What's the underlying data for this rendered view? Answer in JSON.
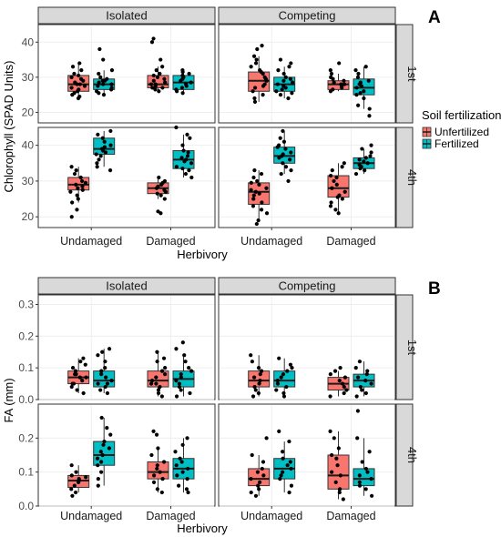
{
  "legend": {
    "title": "Soil fertilization",
    "items": [
      {
        "label": "Unfertilized",
        "color": "#f8766d"
      },
      {
        "label": "Fertilized",
        "color": "#00bfc4"
      }
    ]
  },
  "chart_data": [
    {
      "type": "boxplot",
      "panel_letter": "A",
      "ylabel": "Chlorophyll (SPAD Units)",
      "xlabel": "Herbivory",
      "categories": [
        "Undamaged",
        "Damaged"
      ],
      "column_facets": [
        "Isolated",
        "Competing"
      ],
      "row_facets": [
        {
          "label": "1st",
          "ylim": [
            17,
            45
          ],
          "yticks": [
            20,
            30,
            40
          ]
        },
        {
          "label": "4th",
          "ylim": [
            17,
            45
          ],
          "yticks": [
            20,
            30,
            40
          ]
        }
      ],
      "series": [
        "Unfertilized",
        "Fertilized"
      ],
      "groups": [
        {
          "col": "Isolated",
          "row": "1st",
          "category": "Undamaged",
          "series": "Unfertilized",
          "min": 24,
          "q1": 26,
          "median": 28,
          "q3": 30.5,
          "max": 34,
          "points": [
            24,
            24.5,
            25,
            25.5,
            26,
            26.5,
            27,
            27.5,
            28,
            28,
            28.5,
            29,
            29.5,
            30,
            30.5,
            31,
            32,
            33,
            34
          ]
        },
        {
          "col": "Isolated",
          "row": "1st",
          "category": "Undamaged",
          "series": "Fertilized",
          "min": 25,
          "q1": 26.5,
          "median": 28,
          "q3": 29.5,
          "max": 32,
          "points": [
            25,
            25.5,
            26,
            26.5,
            27,
            27.5,
            28,
            28,
            28.5,
            29,
            29,
            29.5,
            30,
            31,
            32,
            35,
            38
          ]
        },
        {
          "col": "Isolated",
          "row": "1st",
          "category": "Damaged",
          "series": "Unfertilized",
          "min": 26,
          "q1": 27,
          "median": 28,
          "q3": 30.5,
          "max": 33,
          "points": [
            26,
            26.5,
            27,
            27,
            27.5,
            28,
            28,
            28.5,
            29,
            29.5,
            30,
            30.5,
            31,
            32,
            33,
            35,
            40,
            41
          ]
        },
        {
          "col": "Isolated",
          "row": "1st",
          "category": "Damaged",
          "series": "Fertilized",
          "min": 25.5,
          "q1": 26.5,
          "median": 28.5,
          "q3": 30.5,
          "max": 32,
          "points": [
            25.5,
            26,
            26.5,
            27,
            27.5,
            28,
            28.5,
            29,
            29.5,
            30,
            30.5,
            31,
            31.5,
            32
          ]
        },
        {
          "col": "Competing",
          "row": "1st",
          "category": "Undamaged",
          "series": "Unfertilized",
          "min": 23,
          "q1": 26,
          "median": 29,
          "q3": 31.5,
          "max": 36,
          "points": [
            23,
            24,
            25,
            26,
            27,
            27.5,
            28,
            29,
            29.5,
            30,
            31,
            31.5,
            32,
            33,
            34,
            35,
            36,
            38,
            39
          ]
        },
        {
          "col": "Competing",
          "row": "1st",
          "category": "Undamaged",
          "series": "Fertilized",
          "min": 24,
          "q1": 26,
          "median": 28,
          "q3": 30,
          "max": 33,
          "points": [
            24,
            25,
            25.5,
            26,
            26.5,
            27,
            27.5,
            28,
            28.5,
            29,
            29.5,
            30,
            31,
            32,
            33,
            34,
            35
          ]
        },
        {
          "col": "Competing",
          "row": "1st",
          "category": "Damaged",
          "series": "Unfertilized",
          "min": 26,
          "q1": 26.5,
          "median": 28,
          "q3": 29,
          "max": 31,
          "points": [
            26,
            26.5,
            27,
            27.5,
            28,
            28,
            28.5,
            29,
            29.5,
            30,
            31,
            32,
            34
          ]
        },
        {
          "col": "Competing",
          "row": "1st",
          "category": "Damaged",
          "series": "Fertilized",
          "min": 21,
          "q1": 25,
          "median": 27,
          "q3": 29.5,
          "max": 33,
          "points": [
            19,
            21,
            22,
            24,
            25,
            25.5,
            26,
            27,
            27.5,
            28,
            28.5,
            29,
            30,
            31,
            32,
            33
          ]
        },
        {
          "col": "Isolated",
          "row": "4th",
          "category": "Undamaged",
          "series": "Unfertilized",
          "min": 24,
          "q1": 27.5,
          "median": 29,
          "q3": 31,
          "max": 34,
          "points": [
            20,
            22,
            24,
            25,
            26,
            27,
            27.5,
            28,
            28.5,
            29,
            29.5,
            30,
            31,
            32,
            33,
            34
          ]
        },
        {
          "col": "Isolated",
          "row": "4th",
          "category": "Undamaged",
          "series": "Fertilized",
          "min": 34,
          "q1": 37.5,
          "median": 39,
          "q3": 42,
          "max": 44,
          "points": [
            33,
            34,
            35,
            36,
            37,
            37.5,
            38,
            38.5,
            39,
            39.5,
            40,
            41,
            42,
            43,
            44
          ]
        },
        {
          "col": "Isolated",
          "row": "4th",
          "category": "Damaged",
          "series": "Unfertilized",
          "min": 25,
          "q1": 26.5,
          "median": 28,
          "q3": 29.5,
          "max": 31,
          "points": [
            21,
            21.5,
            25,
            26,
            26.5,
            27,
            27.5,
            28,
            28.5,
            29,
            29.5,
            30,
            31
          ]
        },
        {
          "col": "Isolated",
          "row": "4th",
          "category": "Damaged",
          "series": "Fertilized",
          "min": 31,
          "q1": 33.5,
          "median": 36,
          "q3": 38.5,
          "max": 43,
          "points": [
            31,
            32,
            33,
            33.5,
            34,
            35,
            35.5,
            36,
            36.5,
            37,
            38,
            38.5,
            40,
            42,
            43,
            45
          ]
        },
        {
          "col": "Competing",
          "row": "4th",
          "category": "Undamaged",
          "series": "Unfertilized",
          "min": 19,
          "q1": 23.5,
          "median": 27,
          "q3": 29.5,
          "max": 33,
          "points": [
            18,
            19,
            21,
            22,
            23,
            24,
            25,
            26,
            26.5,
            27,
            27.5,
            28,
            29,
            29.5,
            30,
            31,
            32,
            33
          ]
        },
        {
          "col": "Competing",
          "row": "4th",
          "category": "Undamaged",
          "series": "Fertilized",
          "min": 32,
          "q1": 35,
          "median": 37,
          "q3": 39.5,
          "max": 44,
          "points": [
            30,
            32,
            33,
            34,
            35,
            36,
            36.5,
            37,
            37.5,
            38,
            39,
            39.5,
            40,
            41,
            42,
            44
          ]
        },
        {
          "col": "Competing",
          "row": "4th",
          "category": "Damaged",
          "series": "Unfertilized",
          "min": 21,
          "q1": 25.5,
          "median": 28,
          "q3": 31.5,
          "max": 35,
          "points": [
            21,
            22,
            23,
            24,
            25,
            25.5,
            26,
            27,
            28,
            29,
            30,
            31,
            31.5,
            33,
            34,
            35
          ]
        },
        {
          "col": "Competing",
          "row": "4th",
          "category": "Damaged",
          "series": "Fertilized",
          "min": 32,
          "q1": 33.5,
          "median": 35,
          "q3": 36.5,
          "max": 39,
          "points": [
            32,
            33,
            33.5,
            34,
            34.5,
            35,
            35.5,
            36,
            36.5,
            37,
            38,
            39,
            40
          ]
        }
      ]
    },
    {
      "type": "boxplot",
      "panel_letter": "B",
      "ylabel": "FA (mm)",
      "xlabel": "Herbivory",
      "categories": [
        "Undamaged",
        "Damaged"
      ],
      "column_facets": [
        "Isolated",
        "Competing"
      ],
      "row_facets": [
        {
          "label": "1st",
          "ylim": [
            0,
            0.33
          ],
          "yticks": [
            0.0,
            0.1,
            0.2,
            0.3
          ]
        },
        {
          "label": "4th",
          "ylim": [
            0,
            0.3
          ],
          "yticks": [
            0.0,
            0.1,
            0.2
          ]
        }
      ],
      "series": [
        "Unfertilized",
        "Fertilized"
      ],
      "groups": [
        {
          "col": "Isolated",
          "row": "1st",
          "category": "Undamaged",
          "series": "Unfertilized",
          "min": 0.02,
          "q1": 0.05,
          "median": 0.07,
          "q3": 0.09,
          "max": 0.13,
          "points": [
            0.02,
            0.03,
            0.04,
            0.05,
            0.05,
            0.06,
            0.07,
            0.07,
            0.08,
            0.08,
            0.09,
            0.1,
            0.11,
            0.12,
            0.13
          ]
        },
        {
          "col": "Isolated",
          "row": "1st",
          "category": "Undamaged",
          "series": "Fertilized",
          "min": 0.02,
          "q1": 0.04,
          "median": 0.06,
          "q3": 0.09,
          "max": 0.16,
          "points": [
            0.02,
            0.03,
            0.04,
            0.05,
            0.05,
            0.06,
            0.07,
            0.08,
            0.09,
            0.1,
            0.12,
            0.14,
            0.15,
            0.16
          ]
        },
        {
          "col": "Isolated",
          "row": "1st",
          "category": "Damaged",
          "series": "Unfertilized",
          "min": 0.01,
          "q1": 0.04,
          "median": 0.06,
          "q3": 0.09,
          "max": 0.15,
          "points": [
            0.01,
            0.02,
            0.03,
            0.04,
            0.05,
            0.05,
            0.06,
            0.07,
            0.08,
            0.09,
            0.1,
            0.12,
            0.13,
            0.15
          ]
        },
        {
          "col": "Isolated",
          "row": "1st",
          "category": "Damaged",
          "series": "Fertilized",
          "min": 0.01,
          "q1": 0.04,
          "median": 0.065,
          "q3": 0.09,
          "max": 0.14,
          "points": [
            0.01,
            0.02,
            0.03,
            0.04,
            0.05,
            0.06,
            0.07,
            0.08,
            0.09,
            0.1,
            0.12,
            0.14,
            0.16,
            0.18
          ]
        },
        {
          "col": "Competing",
          "row": "1st",
          "category": "Undamaged",
          "series": "Unfertilized",
          "min": 0.01,
          "q1": 0.04,
          "median": 0.06,
          "q3": 0.09,
          "max": 0.14,
          "points": [
            0.01,
            0.02,
            0.03,
            0.04,
            0.05,
            0.06,
            0.07,
            0.08,
            0.09,
            0.1,
            0.12,
            0.14
          ]
        },
        {
          "col": "Competing",
          "row": "1st",
          "category": "Undamaged",
          "series": "Fertilized",
          "min": 0.01,
          "q1": 0.04,
          "median": 0.06,
          "q3": 0.09,
          "max": 0.13,
          "points": [
            0.01,
            0.02,
            0.03,
            0.04,
            0.05,
            0.06,
            0.07,
            0.08,
            0.09,
            0.1,
            0.11,
            0.13
          ]
        },
        {
          "col": "Competing",
          "row": "1st",
          "category": "Damaged",
          "series": "Unfertilized",
          "min": 0.01,
          "q1": 0.03,
          "median": 0.05,
          "q3": 0.07,
          "max": 0.09,
          "points": [
            0.01,
            0.02,
            0.03,
            0.04,
            0.05,
            0.06,
            0.07,
            0.08,
            0.09,
            0.1
          ]
        },
        {
          "col": "Competing",
          "row": "1st",
          "category": "Damaged",
          "series": "Fertilized",
          "min": 0.01,
          "q1": 0.04,
          "median": 0.06,
          "q3": 0.08,
          "max": 0.12,
          "points": [
            0.01,
            0.02,
            0.03,
            0.04,
            0.05,
            0.06,
            0.07,
            0.08,
            0.09,
            0.1,
            0.12
          ]
        },
        {
          "col": "Isolated",
          "row": "4th",
          "category": "Undamaged",
          "series": "Unfertilized",
          "min": 0.04,
          "q1": 0.055,
          "median": 0.075,
          "q3": 0.09,
          "max": 0.12,
          "points": [
            0.03,
            0.04,
            0.05,
            0.06,
            0.07,
            0.075,
            0.08,
            0.085,
            0.09,
            0.1,
            0.12
          ]
        },
        {
          "col": "Isolated",
          "row": "4th",
          "category": "Undamaged",
          "series": "Fertilized",
          "min": 0.06,
          "q1": 0.12,
          "median": 0.15,
          "q3": 0.19,
          "max": 0.26,
          "points": [
            0.06,
            0.08,
            0.1,
            0.12,
            0.13,
            0.14,
            0.15,
            0.16,
            0.17,
            0.18,
            0.19,
            0.21,
            0.23,
            0.26
          ]
        },
        {
          "col": "Isolated",
          "row": "4th",
          "category": "Damaged",
          "series": "Unfertilized",
          "min": 0.04,
          "q1": 0.08,
          "median": 0.1,
          "q3": 0.13,
          "max": 0.17,
          "points": [
            0.04,
            0.05,
            0.07,
            0.08,
            0.09,
            0.1,
            0.11,
            0.12,
            0.13,
            0.15,
            0.17,
            0.21,
            0.22
          ]
        },
        {
          "col": "Isolated",
          "row": "4th",
          "category": "Damaged",
          "series": "Fertilized",
          "min": 0.04,
          "q1": 0.08,
          "median": 0.11,
          "q3": 0.14,
          "max": 0.2,
          "points": [
            0.04,
            0.05,
            0.06,
            0.08,
            0.09,
            0.1,
            0.11,
            0.12,
            0.13,
            0.14,
            0.16,
            0.18,
            0.2
          ]
        },
        {
          "col": "Competing",
          "row": "4th",
          "category": "Undamaged",
          "series": "Unfertilized",
          "min": 0.03,
          "q1": 0.06,
          "median": 0.08,
          "q3": 0.11,
          "max": 0.15,
          "points": [
            0.03,
            0.04,
            0.05,
            0.06,
            0.07,
            0.08,
            0.09,
            0.1,
            0.11,
            0.13,
            0.15,
            0.2
          ]
        },
        {
          "col": "Competing",
          "row": "4th",
          "category": "Undamaged",
          "series": "Fertilized",
          "min": 0.04,
          "q1": 0.08,
          "median": 0.11,
          "q3": 0.14,
          "max": 0.19,
          "points": [
            0.04,
            0.06,
            0.08,
            0.09,
            0.1,
            0.11,
            0.12,
            0.13,
            0.14,
            0.16,
            0.19,
            0.22
          ]
        },
        {
          "col": "Competing",
          "row": "4th",
          "category": "Damaged",
          "series": "Unfertilized",
          "min": 0.02,
          "q1": 0.05,
          "median": 0.09,
          "q3": 0.15,
          "max": 0.22,
          "points": [
            0.02,
            0.04,
            0.05,
            0.07,
            0.09,
            0.1,
            0.12,
            0.14,
            0.15,
            0.17,
            0.2,
            0.22
          ]
        },
        {
          "col": "Competing",
          "row": "4th",
          "category": "Damaged",
          "series": "Fertilized",
          "min": 0.03,
          "q1": 0.06,
          "median": 0.08,
          "q3": 0.11,
          "max": 0.2,
          "points": [
            0.03,
            0.05,
            0.06,
            0.07,
            0.08,
            0.09,
            0.1,
            0.11,
            0.13,
            0.16,
            0.2,
            0.28
          ]
        }
      ]
    }
  ]
}
